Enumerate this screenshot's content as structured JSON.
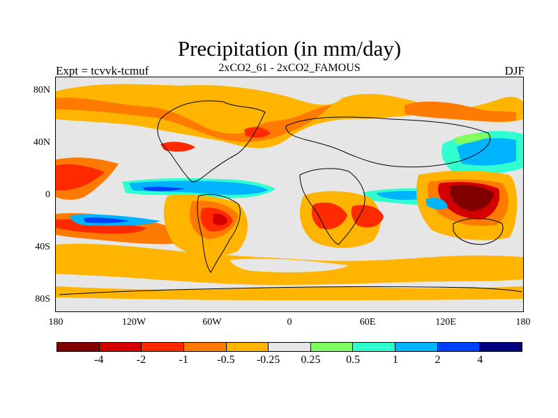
{
  "header": {
    "title": "Precipitation (in mm/day)",
    "left_label": "Expt = tcvvk-tcmuf",
    "center_label": "2xCO2_61 - 2xCO2_FAMOUS",
    "right_label": "DJF"
  },
  "axes": {
    "y_ticks": [
      "80N",
      "40N",
      "0",
      "40S",
      "80S"
    ],
    "x_ticks": [
      "180",
      "120W",
      "60W",
      "0",
      "60E",
      "120E",
      "180"
    ]
  },
  "colorbar": {
    "colors": [
      "#800000",
      "#d40000",
      "#ff2a00",
      "#ff7a00",
      "#ffb400",
      "#e6e6e6",
      "#80ff60",
      "#30ffd0",
      "#00b4ff",
      "#0040ff",
      "#000080"
    ],
    "labels": [
      "-4",
      "-2",
      "-1",
      "-0.5",
      "-0.25",
      "0.25",
      "0.5",
      "1",
      "2",
      "4"
    ]
  },
  "map": {
    "background_color": "#e6e6e6",
    "coastline_color": "#000000",
    "projection": "cylindrical equidistant"
  }
}
